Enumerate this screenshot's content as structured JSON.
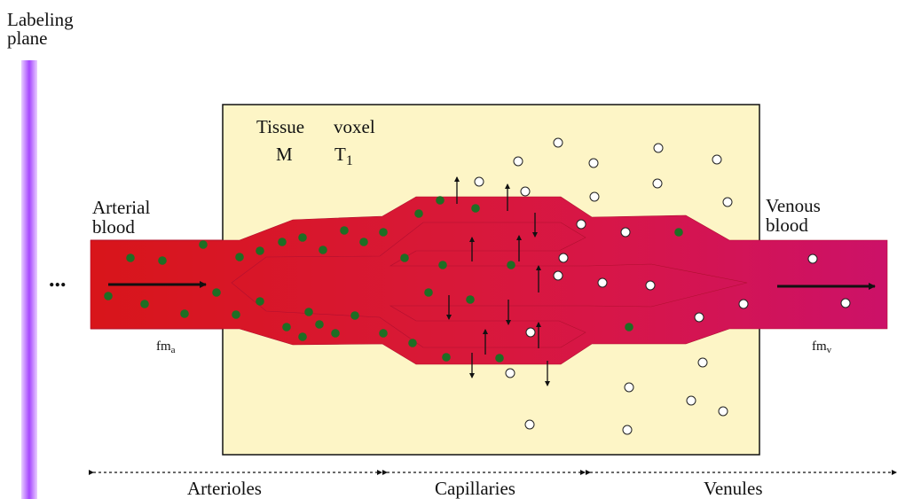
{
  "labels": {
    "labeling_plane_line1": "Labeling",
    "labeling_plane_line2": "plane",
    "tissue": "Tissue",
    "voxel": "voxel",
    "m": "M",
    "t1_main": "T",
    "t1_sub": "1",
    "arterial_line1": "Arterial",
    "arterial_line2": "blood",
    "venous_line1": "Venous",
    "venous_line2": "blood",
    "ellipsis": "...",
    "fm_a_main": "fm",
    "fm_a_sub": "a",
    "fm_v_main": "fm",
    "fm_v_sub": "v"
  },
  "regions": [
    "Arterioles",
    "Capillaries",
    "Venules"
  ],
  "colors": {
    "tissue_fill": "#fdf5c6",
    "arterial_red": "#d8121a",
    "venous_magenta": "#cc1165",
    "labeled_dot": "#1e6e24",
    "unlabeled_dot": "#ffffff",
    "labeling_plane": "#a646ff"
  }
}
